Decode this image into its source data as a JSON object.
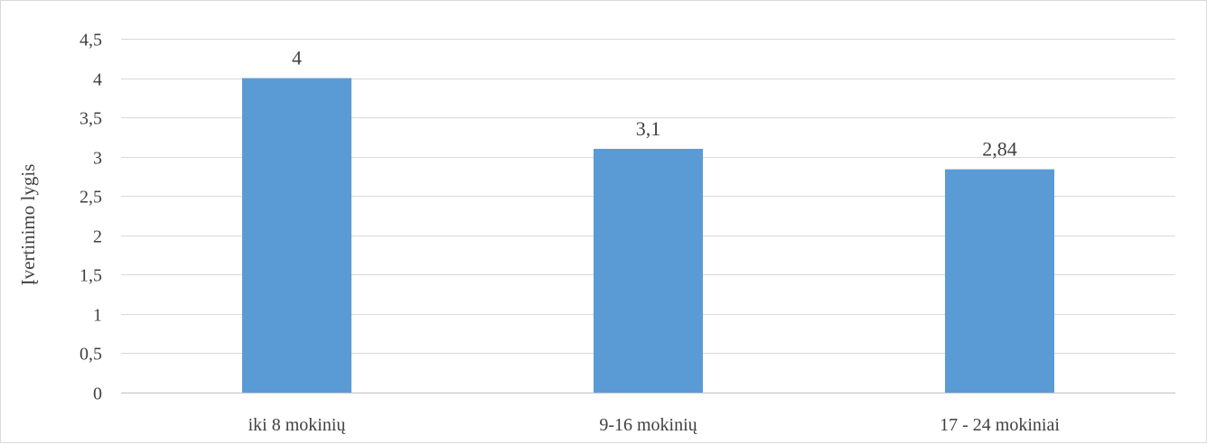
{
  "chart_data": {
    "type": "bar",
    "title": "",
    "xlabel": "",
    "ylabel": "Įvertinimo lygis",
    "categories": [
      "iki 8 mokinių",
      "9-16 mokinių",
      "17 - 24 mokiniai"
    ],
    "values": [
      4,
      3.1,
      2.84
    ],
    "data_labels": [
      "4",
      "3,1",
      "2,84"
    ],
    "ylim": [
      0,
      4.5
    ],
    "yticks": [
      0,
      0.5,
      1,
      1.5,
      2,
      2.5,
      3,
      3.5,
      4,
      4.5
    ],
    "ytick_labels": [
      "0",
      "0,5",
      "1",
      "1,5",
      "2",
      "2,5",
      "3",
      "3,5",
      "4",
      "4,5"
    ],
    "grid": true,
    "legend": "none",
    "colors": {
      "bar": "#5b9bd5",
      "grid": "#d9d9d9",
      "text": "#404040"
    }
  }
}
